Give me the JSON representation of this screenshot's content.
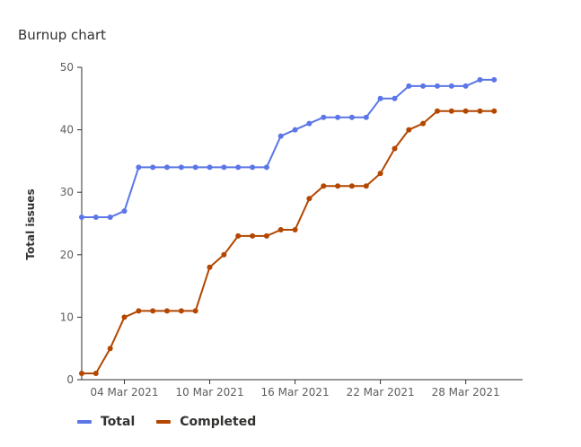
{
  "title": "Burnup chart",
  "chart_data": {
    "type": "line",
    "title": "Burnup chart",
    "xlabel": "",
    "ylabel": "Total issues",
    "ylim": [
      0,
      50
    ],
    "yticks": [
      0,
      10,
      20,
      30,
      40,
      50
    ],
    "x_range": [
      "2021-03-01",
      "2021-04-01"
    ],
    "xticks": [
      {
        "date": "2021-03-04",
        "label": "04 Mar 2021"
      },
      {
        "date": "2021-03-10",
        "label": "10 Mar 2021"
      },
      {
        "date": "2021-03-16",
        "label": "16 Mar 2021"
      },
      {
        "date": "2021-03-22",
        "label": "22 Mar 2021"
      },
      {
        "date": "2021-03-28",
        "label": "28 Mar 2021"
      }
    ],
    "x": [
      "2021-03-01",
      "2021-03-02",
      "2021-03-03",
      "2021-03-04",
      "2021-03-05",
      "2021-03-06",
      "2021-03-07",
      "2021-03-08",
      "2021-03-09",
      "2021-03-10",
      "2021-03-11",
      "2021-03-12",
      "2021-03-13",
      "2021-03-14",
      "2021-03-15",
      "2021-03-16",
      "2021-03-17",
      "2021-03-18",
      "2021-03-19",
      "2021-03-20",
      "2021-03-21",
      "2021-03-22",
      "2021-03-23",
      "2021-03-24",
      "2021-03-25",
      "2021-03-26",
      "2021-03-27",
      "2021-03-28",
      "2021-03-29",
      "2021-03-30",
      "2021-03-31"
    ],
    "series": [
      {
        "name": "Total",
        "color": "#5b76e8",
        "values": [
          26,
          26,
          26,
          27,
          34,
          34,
          34,
          34,
          34,
          34,
          34,
          34,
          34,
          34,
          39,
          40,
          41,
          42,
          42,
          42,
          42,
          45,
          45,
          47,
          47,
          47,
          47,
          47,
          48,
          48,
          null
        ]
      },
      {
        "name": "Completed",
        "color": "#b34700",
        "values": [
          1,
          1,
          5,
          10,
          11,
          11,
          11,
          11,
          11,
          18,
          20,
          23,
          23,
          23,
          24,
          24,
          29,
          31,
          31,
          31,
          31,
          33,
          37,
          40,
          41,
          43,
          43,
          43,
          43,
          43,
          null
        ]
      }
    ],
    "grid": false,
    "legend": "bottom-left"
  }
}
